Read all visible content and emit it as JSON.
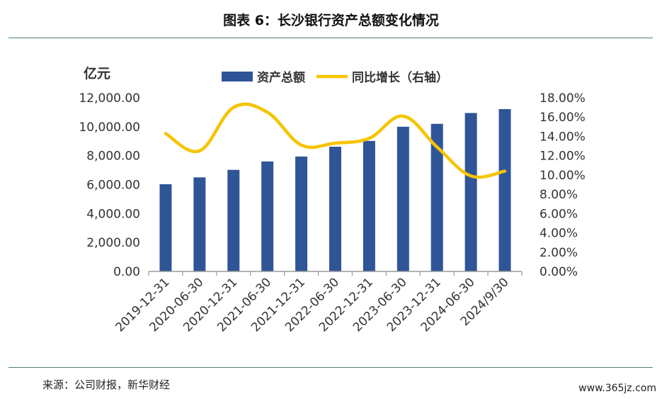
{
  "title": "图表 6：长沙银行资产总额变化情况",
  "source": "来源：公司财报，新华财经",
  "watermark": "www.365jz.com",
  "chart_data": {
    "type": "bar+line",
    "title": "图表 6：长沙银行资产总额变化情况",
    "left_axis_unit": "亿元",
    "categories": [
      "2019-12-31",
      "2020-06-30",
      "2020-12-31",
      "2021-06-30",
      "2021-12-31",
      "2022-06-30",
      "2022-12-31",
      "2023-06-30",
      "2023-12-31",
      "2024-06-30",
      "2024/9/30"
    ],
    "series": [
      {
        "name": "资产总额",
        "type": "bar",
        "axis": "left",
        "color": "#2f5597",
        "values": [
          6030,
          6500,
          7020,
          7600,
          7940,
          8620,
          9020,
          10000,
          10200,
          10950,
          11220
        ]
      },
      {
        "name": "同比增长（右轴）",
        "type": "line",
        "axis": "right",
        "color": "#f5c400",
        "values": [
          14.3,
          12.5,
          17.0,
          16.5,
          13.1,
          13.3,
          13.8,
          16.1,
          12.9,
          9.9,
          10.4
        ]
      }
    ],
    "y_left": {
      "min": 0,
      "max": 12000,
      "step": 2000,
      "tick_labels": [
        "0.00",
        "2,000.00",
        "4,000.00",
        "6,000.00",
        "8,000.00",
        "10,000.00",
        "12,000.00"
      ]
    },
    "y_right": {
      "min": 0,
      "max": 18,
      "step": 2,
      "tick_labels": [
        "0.00%",
        "2.00%",
        "4.00%",
        "6.00%",
        "8.00%",
        "10.00%",
        "12.00%",
        "14.00%",
        "16.00%",
        "18.00%"
      ]
    },
    "legend_position": "top-center",
    "grid": false
  }
}
